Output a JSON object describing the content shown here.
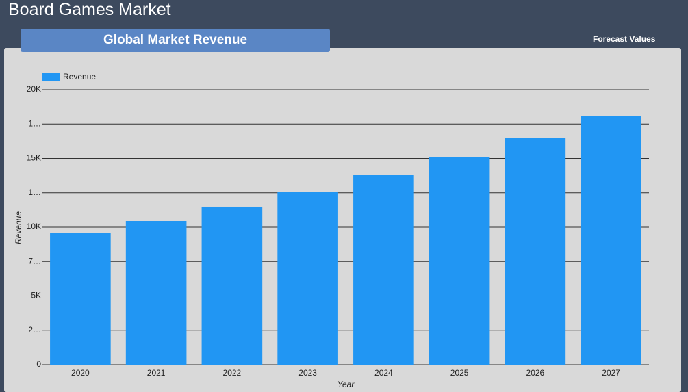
{
  "page_title": "Board Games Market",
  "tab_label": "Global Market Revenue",
  "side_label": "Forecast Values",
  "chart_data": {
    "type": "bar",
    "categories": [
      "2020",
      "2021",
      "2022",
      "2023",
      "2024",
      "2025",
      "2026",
      "2027"
    ],
    "series": [
      {
        "name": "Revenue",
        "color": "#2196f3",
        "values": [
          9552,
          10448,
          11493,
          12537,
          13781,
          15075,
          16517,
          18109
        ]
      }
    ],
    "x_label": "Year",
    "y_label": "Revenue",
    "ylim": [
      0,
      20000
    ],
    "yticks": [
      0,
      {
        "value": 2500,
        "label": "2…"
      },
      {
        "value": 5000,
        "label": "5K"
      },
      {
        "value": 7500,
        "label": "7…"
      },
      {
        "value": 10000,
        "label": "10K"
      },
      {
        "value": 12500,
        "label": "1…"
      },
      {
        "value": 15000,
        "label": "15K"
      },
      {
        "value": 17500,
        "label": "1…"
      },
      {
        "value": 20000,
        "label": "20K"
      }
    ],
    "grid": true,
    "legend": "top-left"
  }
}
